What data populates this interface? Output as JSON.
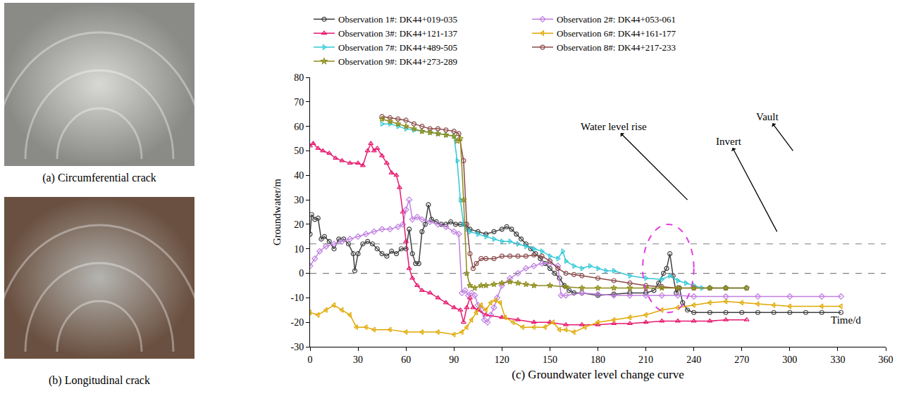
{
  "photos": [
    {
      "caption": "(a) Circumferential crack"
    },
    {
      "caption": "(b) Longitudinal crack"
    }
  ],
  "chart_data": {
    "type": "line",
    "x_label": "(c) Groundwater level change curve",
    "y_label": "Groundwater/m",
    "xlim": [
      0,
      360
    ],
    "xticks": [
      0,
      30,
      60,
      90,
      120,
      150,
      180,
      210,
      240,
      270,
      300,
      330,
      360
    ],
    "ylim": [
      -30,
      80
    ],
    "yticks": [
      -30,
      -20,
      -10,
      0,
      10,
      20,
      30,
      40,
      50,
      60,
      70,
      80
    ],
    "grid": false,
    "legend": "top",
    "hlines": [
      12,
      0
    ],
    "ellipse": {
      "x": [
        208,
        240
      ],
      "y": [
        -16,
        20
      ]
    },
    "annotations": [
      {
        "text": "Time/d",
        "x": 335,
        "y": -19
      },
      {
        "text": "Water level rise",
        "x": 190,
        "y": 60,
        "arrow_from": [
          236,
          30
        ]
      },
      {
        "text": "Vault",
        "x": 286,
        "y": 64,
        "arrow_from": [
          302,
          50
        ]
      },
      {
        "text": "Invert",
        "x": 262,
        "y": 54,
        "arrow_from": [
          292,
          17
        ]
      }
    ],
    "series": [
      {
        "name": "Observation 1#: DK44+019-035",
        "color": "#404040",
        "marker": "circle-open",
        "x": [
          0,
          1,
          3,
          5,
          7,
          9,
          12,
          15,
          18,
          21,
          24,
          27,
          28,
          30,
          33,
          36,
          39,
          42,
          45,
          48,
          51,
          54,
          57,
          60,
          62,
          64,
          66,
          68,
          70,
          72,
          74,
          76,
          79,
          82,
          85,
          88,
          91,
          94,
          97,
          100,
          105,
          110,
          115,
          120,
          123,
          126,
          129,
          132,
          135,
          138,
          141,
          144,
          147,
          150,
          153,
          156,
          159,
          162,
          165,
          170,
          180,
          190,
          200,
          210,
          215,
          218,
          221,
          223,
          225,
          227,
          229,
          231,
          233,
          236,
          240,
          250,
          260,
          270,
          280,
          290,
          300,
          310,
          320,
          332
        ],
        "values": [
          16,
          24,
          22,
          22.5,
          14,
          15,
          13,
          10,
          14,
          14,
          12,
          8,
          1,
          8,
          12,
          13,
          12,
          10,
          8,
          7,
          9,
          8,
          10,
          10,
          18,
          8,
          4,
          4,
          17,
          20,
          28,
          22,
          21,
          20,
          20,
          21,
          20,
          20,
          20,
          18,
          17,
          16,
          17,
          18,
          19,
          18,
          16,
          14,
          12,
          10,
          8,
          6,
          4,
          2,
          0,
          -2,
          -5,
          -7,
          -8,
          -8,
          -9,
          -8.5,
          -8,
          -8,
          -7,
          -4,
          0,
          2,
          8,
          -1,
          -8,
          -6,
          -12,
          -15,
          -16,
          -16,
          -16,
          -16,
          -16,
          -16,
          -16,
          -16,
          -16,
          -16
        ]
      },
      {
        "name": "Observation 2#: DK44+053-061",
        "color": "#c080e0",
        "marker": "diamond-open",
        "x": [
          0,
          3,
          6,
          10,
          15,
          20,
          25,
          30,
          35,
          40,
          45,
          50,
          55,
          58,
          60,
          62,
          64,
          67,
          70,
          75,
          80,
          85,
          90,
          93,
          95,
          97,
          99,
          101,
          103,
          105,
          107,
          109,
          111,
          113,
          115,
          117,
          120,
          125,
          130,
          135,
          140,
          145,
          150,
          155,
          157,
          160,
          170,
          180,
          190,
          200,
          210,
          220,
          230,
          240,
          260,
          280,
          300,
          320,
          332
        ],
        "values": [
          3,
          6,
          9,
          11,
          12,
          13,
          14,
          15,
          16,
          17,
          18,
          18,
          19,
          20,
          26,
          30,
          22,
          23,
          22,
          21,
          20,
          19,
          17,
          16,
          -8,
          -7,
          -9,
          -8,
          -9,
          -13,
          -15,
          -19,
          -20,
          -17,
          -14,
          -10,
          -5,
          -2,
          0,
          2,
          3,
          4,
          4,
          3,
          -9,
          -9,
          -8,
          -8.5,
          -9,
          -9,
          -9,
          -9,
          -9,
          -9.5,
          -9.5,
          -9.5,
          -9.5,
          -9.5,
          -9.5
        ]
      },
      {
        "name": "Observation 3#: DK44+121-137",
        "color": "#e6196f",
        "marker": "triangle-up-open",
        "x": [
          0,
          2,
          5,
          8,
          12,
          16,
          20,
          25,
          30,
          33,
          36,
          38,
          40,
          42,
          45,
          48,
          51,
          54,
          56,
          58,
          60,
          62,
          64,
          67,
          70,
          75,
          80,
          85,
          90,
          94,
          96,
          98,
          100,
          102,
          105,
          110,
          120,
          130,
          140,
          150,
          160,
          170,
          180,
          190,
          200,
          210,
          220,
          230,
          240,
          250,
          260,
          273
        ],
        "values": [
          52,
          53,
          51,
          50,
          49,
          47,
          46,
          45,
          45,
          44,
          50,
          53,
          50,
          51,
          48,
          45,
          41,
          40,
          35,
          25,
          13,
          2,
          -2,
          -5,
          -7,
          -8,
          -10,
          -12,
          -14,
          -15,
          -20,
          -14,
          -10,
          -14,
          -15,
          -17,
          -18,
          -19,
          -20,
          -20,
          -21,
          -21,
          -21,
          -20.5,
          -20.5,
          -20,
          -19.5,
          -19.5,
          -19.5,
          -19.5,
          -19,
          -19
        ]
      },
      {
        "name": "Observation 6#: DK44+161-177",
        "color": "#e0a800",
        "marker": "triangle-left-open",
        "x": [
          0,
          5,
          10,
          15,
          20,
          25,
          29,
          35,
          40,
          50,
          60,
          70,
          80,
          90,
          95,
          98,
          101,
          104,
          107,
          110,
          113,
          116,
          119,
          122,
          127,
          133,
          140,
          147,
          152,
          156,
          160,
          165,
          172,
          180,
          190,
          200,
          210,
          220,
          230,
          240,
          250,
          260,
          270,
          280,
          290,
          300,
          320,
          332
        ],
        "values": [
          -16,
          -17,
          -15,
          -13,
          -15,
          -17,
          -22,
          -22,
          -23,
          -23,
          -24,
          -24,
          -24,
          -25,
          -24,
          -22,
          -19,
          -16,
          -13,
          -15,
          -12,
          -11,
          -12,
          -18,
          -20,
          -22,
          -22,
          -22,
          -20,
          -23,
          -23,
          -24,
          -22,
          -20,
          -19,
          -18,
          -17,
          -15,
          -14,
          -13,
          -12,
          -11.5,
          -12,
          -12.5,
          -13,
          -13.5,
          -13.5,
          -13.5
        ]
      },
      {
        "name": "Observation 7#: DK44+489-505",
        "color": "#30c8d8",
        "marker": "triangle-right-open",
        "x": [
          45,
          50,
          55,
          60,
          65,
          70,
          75,
          80,
          85,
          90,
          92,
          94,
          96,
          98,
          100,
          105,
          110,
          115,
          120,
          125,
          130,
          135,
          140,
          145,
          150,
          155,
          158,
          160,
          165,
          170,
          175,
          180,
          185,
          190,
          200,
          210,
          220,
          225,
          230,
          235,
          240,
          245,
          250,
          260,
          273
        ],
        "values": [
          61,
          61,
          60,
          59,
          58.5,
          58,
          57.5,
          57,
          56.5,
          56,
          46,
          30,
          20,
          18,
          17,
          16,
          15,
          14,
          13,
          13,
          12,
          11,
          10,
          9,
          7,
          6,
          9,
          5,
          3,
          2,
          3,
          2,
          1,
          1,
          -1,
          -2,
          -2.5,
          -1,
          -3,
          -4,
          -5,
          -6,
          -6,
          -6,
          -6
        ]
      },
      {
        "name": "Observation 8#: DK44+217-233",
        "color": "#8b4a4a",
        "marker": "circle-open",
        "x": [
          45,
          50,
          55,
          60,
          65,
          70,
          75,
          80,
          85,
          90,
          93,
          96,
          98,
          100,
          102,
          104,
          107,
          110,
          115,
          120,
          125,
          130,
          135,
          140,
          145,
          150,
          155,
          160,
          165,
          170,
          180,
          190,
          200,
          210,
          220,
          230,
          240,
          250,
          260,
          273
        ],
        "values": [
          64,
          63.5,
          63,
          62.5,
          61,
          60,
          59,
          59,
          58.5,
          58,
          57,
          46,
          20,
          8,
          2,
          4,
          6,
          6,
          6,
          7,
          7,
          7,
          7,
          7.5,
          7,
          5,
          2,
          0,
          -0.5,
          -1,
          -2,
          -3,
          -4,
          -5,
          -5.5,
          -6,
          -6,
          -6,
          -6,
          -6
        ]
      },
      {
        "name": "Observation 9#: DK44+273-289",
        "color": "#8c8c1a",
        "marker": "star-open",
        "x": [
          45,
          50,
          55,
          60,
          65,
          70,
          75,
          80,
          85,
          90,
          92,
          94,
          96,
          98,
          100,
          103,
          107,
          110,
          115,
          120,
          125,
          130,
          135,
          140,
          150,
          160,
          170,
          180,
          190,
          200,
          210,
          220,
          230,
          240,
          250,
          260,
          273
        ],
        "values": [
          63,
          62,
          61,
          60,
          59,
          58,
          57.5,
          57,
          56.5,
          56,
          54,
          55,
          30,
          0,
          -5,
          -6,
          -5,
          -5,
          -4.5,
          -4,
          -3.5,
          -4,
          -4.5,
          -5,
          -5,
          -5.5,
          -6,
          -6,
          -6,
          -6,
          -6,
          -6,
          -6,
          -6,
          -6,
          -6,
          -6
        ]
      }
    ]
  }
}
